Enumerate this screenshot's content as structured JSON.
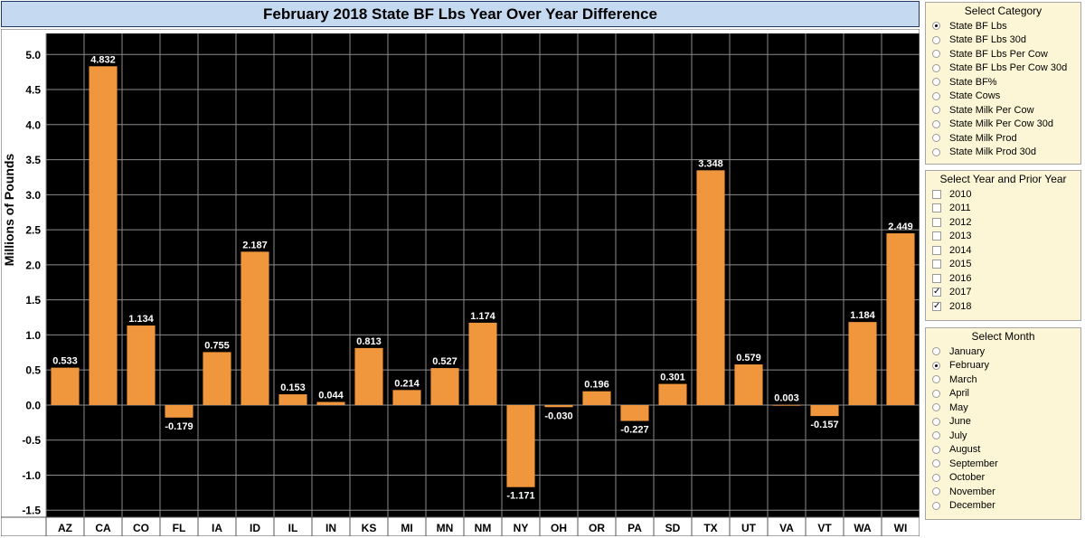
{
  "chart_data": {
    "type": "bar",
    "title": "February 2018 State BF Lbs Year Over Year Difference",
    "ylabel": "Millions of Pounds",
    "xlabel": "",
    "ylim": [
      -1.6,
      5.3
    ],
    "yticks": [
      -1.5,
      -1.0,
      -0.5,
      0.0,
      0.5,
      1.0,
      1.5,
      2.0,
      2.5,
      3.0,
      3.5,
      4.0,
      4.5,
      5.0
    ],
    "ytick_labels": [
      "-1.5",
      "-1.0",
      "-0.5",
      "0.0",
      "0.5",
      "1.0",
      "1.5",
      "2.0",
      "2.5",
      "3.0",
      "3.5",
      "4.0",
      "4.5",
      "5.0"
    ],
    "grid": true,
    "bar_color": "#f0973e",
    "background_color": "#000000",
    "categories": [
      "AZ",
      "CA",
      "CO",
      "FL",
      "IA",
      "ID",
      "IL",
      "IN",
      "KS",
      "MI",
      "MN",
      "NM",
      "NY",
      "OH",
      "OR",
      "PA",
      "SD",
      "TX",
      "UT",
      "VA",
      "VT",
      "WA",
      "WI"
    ],
    "values": [
      0.533,
      4.832,
      1.134,
      -0.179,
      0.755,
      2.187,
      0.153,
      0.044,
      0.813,
      0.214,
      0.527,
      1.174,
      -1.171,
      -0.03,
      0.196,
      -0.227,
      0.301,
      3.348,
      0.579,
      0.003,
      -0.157,
      1.184,
      2.449
    ],
    "value_labels": [
      "0.533",
      "4.832",
      "1.134",
      "-0.179",
      "0.755",
      "2.187",
      "0.153",
      "0.044",
      "0.813",
      "0.214",
      "0.527",
      "1.174",
      "-1.171",
      "-0.030",
      "0.196",
      "-0.227",
      "0.301",
      "3.348",
      "0.579",
      "0.003",
      "-0.157",
      "1.184",
      "2.449"
    ]
  },
  "category_panel": {
    "title": "Select Category",
    "options": [
      "State BF Lbs",
      "State BF Lbs 30d",
      "State BF Lbs Per Cow",
      "State BF Lbs Per Cow 30d",
      "State BF%",
      "State Cows",
      "State Milk Per Cow",
      "State Milk Per Cow 30d",
      "State Milk Prod",
      "State Milk Prod 30d"
    ],
    "selected": [
      true,
      false,
      false,
      false,
      false,
      false,
      false,
      false,
      false,
      false
    ]
  },
  "year_panel": {
    "title": "Select Year and Prior Year",
    "options": [
      "2010",
      "2011",
      "2012",
      "2013",
      "2014",
      "2015",
      "2016",
      "2017",
      "2018"
    ],
    "checked": [
      false,
      false,
      false,
      false,
      false,
      false,
      false,
      true,
      true
    ]
  },
  "month_panel": {
    "title": "Select Month",
    "options": [
      "January",
      "February",
      "March",
      "April",
      "May",
      "June",
      "July",
      "August",
      "September",
      "October",
      "November",
      "December"
    ],
    "selected": [
      false,
      true,
      false,
      false,
      false,
      false,
      false,
      false,
      false,
      false,
      false,
      false
    ]
  }
}
